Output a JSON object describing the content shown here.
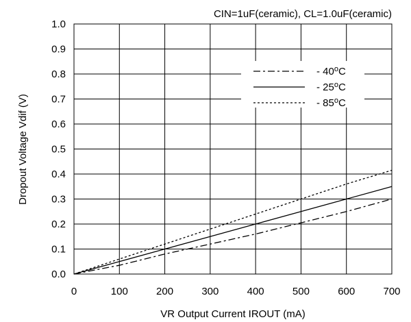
{
  "chart_data": {
    "type": "line",
    "title": "CIN=1uF(ceramic), CL=1.0uF(ceramic)",
    "xlabel": "VR Output Current IROUT (mA)",
    "ylabel": "Dropout Voltage Vdif (V)",
    "xlim": [
      0,
      700
    ],
    "ylim": [
      0,
      1.0
    ],
    "x_ticks": [
      "0",
      "100",
      "200",
      "300",
      "400",
      "500",
      "600",
      "700"
    ],
    "y_ticks": [
      "0.0",
      "0.1",
      "0.2",
      "0.3",
      "0.4",
      "0.5",
      "0.6",
      "0.7",
      "0.8",
      "0.9",
      "1.0"
    ],
    "grid": true,
    "legend_position": "top-right",
    "x": [
      0,
      100,
      200,
      300,
      400,
      500,
      600,
      700
    ],
    "series": [
      {
        "name": "- 40oC",
        "style": "dash-dot",
        "values": [
          0,
          0.035,
          0.08,
          0.12,
          0.16,
          0.205,
          0.25,
          0.3
        ]
      },
      {
        "name": "- 25oC",
        "style": "solid",
        "values": [
          0,
          0.05,
          0.1,
          0.15,
          0.2,
          0.25,
          0.3,
          0.35
        ]
      },
      {
        "name": "- 85oC",
        "style": "dotted",
        "values": [
          0,
          0.06,
          0.12,
          0.18,
          0.24,
          0.3,
          0.36,
          0.415
        ]
      }
    ],
    "colors": {
      "line": "#000000",
      "grid": "#000000",
      "background": "#ffffff"
    }
  }
}
